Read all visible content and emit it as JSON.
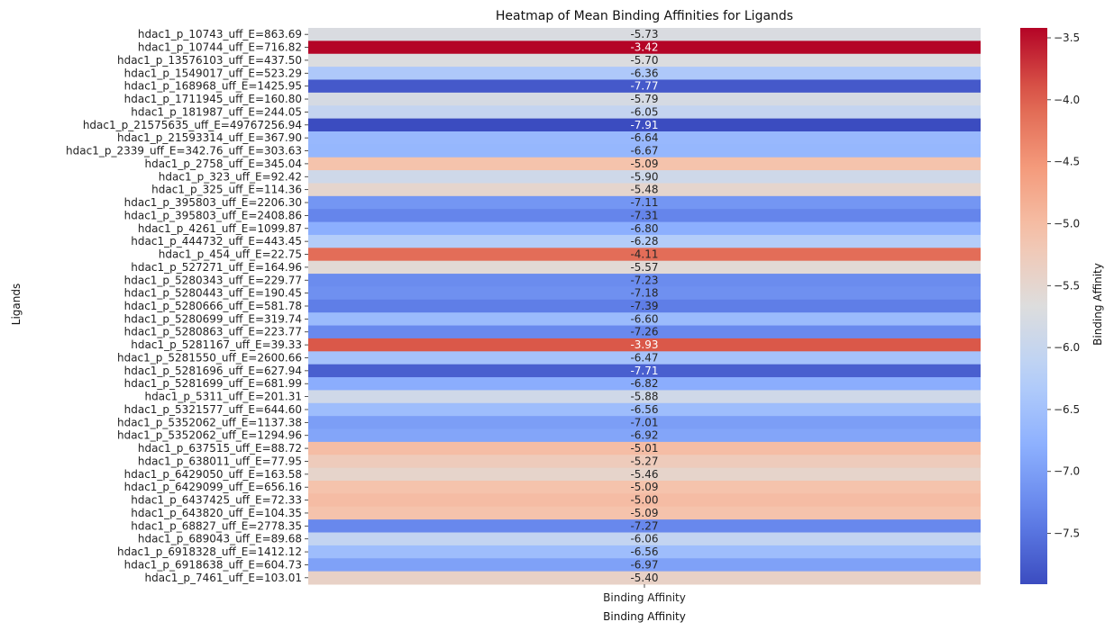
{
  "chart_data": {
    "type": "heatmap",
    "title": "Heatmap of Mean Binding Affinities for Ligands",
    "xlabel": "Binding Affinity",
    "ylabel": "Ligands",
    "columns": [
      "Binding Affinity"
    ],
    "colorbar_label": "Binding Affinity",
    "colormap": "coolwarm",
    "color_range": [
      -7.91,
      -3.42
    ],
    "colorbar_ticks": [
      "-3.5",
      "-4.0",
      "-4.5",
      "-5.0",
      "-5.5",
      "-6.0",
      "-6.5",
      "-7.0",
      "-7.5"
    ],
    "rows": [
      {
        "ligand": "hdac1_p_10743_uff_E=863.69",
        "value": -5.73,
        "label": "-5.73"
      },
      {
        "ligand": "hdac1_p_10744_uff_E=716.82",
        "value": -3.42,
        "label": "-3.42"
      },
      {
        "ligand": "hdac1_p_13576103_uff_E=437.50",
        "value": -5.7,
        "label": "-5.70"
      },
      {
        "ligand": "hdac1_p_1549017_uff_E=523.29",
        "value": -6.36,
        "label": "-6.36"
      },
      {
        "ligand": "hdac1_p_168968_uff_E=1425.95",
        "value": -7.77,
        "label": "-7.77"
      },
      {
        "ligand": "hdac1_p_1711945_uff_E=160.80",
        "value": -5.79,
        "label": "-5.79"
      },
      {
        "ligand": "hdac1_p_181987_uff_E=244.05",
        "value": -6.05,
        "label": "-6.05"
      },
      {
        "ligand": "hdac1_p_21575635_uff_E=49767256.94",
        "value": -7.91,
        "label": "-7.91"
      },
      {
        "ligand": "hdac1_p_21593314_uff_E=367.90",
        "value": -6.64,
        "label": "-6.64"
      },
      {
        "ligand": "hdac1_p_2339_uff_E=342.76_uff_E=303.63",
        "value": -6.67,
        "label": "-6.67"
      },
      {
        "ligand": "hdac1_p_2758_uff_E=345.04",
        "value": -5.09,
        "label": "-5.09"
      },
      {
        "ligand": "hdac1_p_323_uff_E=92.42",
        "value": -5.9,
        "label": "-5.90"
      },
      {
        "ligand": "hdac1_p_325_uff_E=114.36",
        "value": -5.48,
        "label": "-5.48"
      },
      {
        "ligand": "hdac1_p_395803_uff_E=2206.30",
        "value": -7.11,
        "label": "-7.11"
      },
      {
        "ligand": "hdac1_p_395803_uff_E=2408.86",
        "value": -7.31,
        "label": "-7.31"
      },
      {
        "ligand": "hdac1_p_4261_uff_E=1099.87",
        "value": -6.8,
        "label": "-6.80"
      },
      {
        "ligand": "hdac1_p_444732_uff_E=443.45",
        "value": -6.28,
        "label": "-6.28"
      },
      {
        "ligand": "hdac1_p_454_uff_E=22.75",
        "value": -4.11,
        "label": "-4.11"
      },
      {
        "ligand": "hdac1_p_527271_uff_E=164.96",
        "value": -5.57,
        "label": "-5.57"
      },
      {
        "ligand": "hdac1_p_5280343_uff_E=229.77",
        "value": -7.23,
        "label": "-7.23"
      },
      {
        "ligand": "hdac1_p_5280443_uff_E=190.45",
        "value": -7.18,
        "label": "-7.18"
      },
      {
        "ligand": "hdac1_p_5280666_uff_E=581.78",
        "value": -7.39,
        "label": "-7.39"
      },
      {
        "ligand": "hdac1_p_5280699_uff_E=319.74",
        "value": -6.6,
        "label": "-6.60"
      },
      {
        "ligand": "hdac1_p_5280863_uff_E=223.77",
        "value": -7.26,
        "label": "-7.26"
      },
      {
        "ligand": "hdac1_p_5281167_uff_E=39.33",
        "value": -3.93,
        "label": "-3.93"
      },
      {
        "ligand": "hdac1_p_5281550_uff_E=2600.66",
        "value": -6.47,
        "label": "-6.47"
      },
      {
        "ligand": "hdac1_p_5281696_uff_E=627.94",
        "value": -7.71,
        "label": "-7.71"
      },
      {
        "ligand": "hdac1_p_5281699_uff_E=681.99",
        "value": -6.82,
        "label": "-6.82"
      },
      {
        "ligand": "hdac1_p_5311_uff_E=201.31",
        "value": -5.88,
        "label": "-5.88"
      },
      {
        "ligand": "hdac1_p_5321577_uff_E=644.60",
        "value": -6.56,
        "label": "-6.56"
      },
      {
        "ligand": "hdac1_p_5352062_uff_E=1137.38",
        "value": -7.01,
        "label": "-7.01"
      },
      {
        "ligand": "hdac1_p_5352062_uff_E=1294.96",
        "value": -6.92,
        "label": "-6.92"
      },
      {
        "ligand": "hdac1_p_637515_uff_E=88.72",
        "value": -5.01,
        "label": "-5.01"
      },
      {
        "ligand": "hdac1_p_638011_uff_E=77.95",
        "value": -5.27,
        "label": "-5.27"
      },
      {
        "ligand": "hdac1_p_6429050_uff_E=163.58",
        "value": -5.46,
        "label": "-5.46"
      },
      {
        "ligand": "hdac1_p_6429099_uff_E=656.16",
        "value": -5.09,
        "label": "-5.09"
      },
      {
        "ligand": "hdac1_p_6437425_uff_E=72.33",
        "value": -5.0,
        "label": "-5.00"
      },
      {
        "ligand": "hdac1_p_643820_uff_E=104.35",
        "value": -5.09,
        "label": "-5.09"
      },
      {
        "ligand": "hdac1_p_68827_uff_E=2778.35",
        "value": -7.27,
        "label": "-7.27"
      },
      {
        "ligand": "hdac1_p_689043_uff_E=89.68",
        "value": -6.06,
        "label": "-6.06"
      },
      {
        "ligand": "hdac1_p_6918328_uff_E=1412.12",
        "value": -6.56,
        "label": "-6.56"
      },
      {
        "ligand": "hdac1_p_6918638_uff_E=604.73",
        "value": -6.97,
        "label": "-6.97"
      },
      {
        "ligand": "hdac1_p_7461_uff_E=103.01",
        "value": -5.4,
        "label": "-5.40"
      }
    ]
  }
}
